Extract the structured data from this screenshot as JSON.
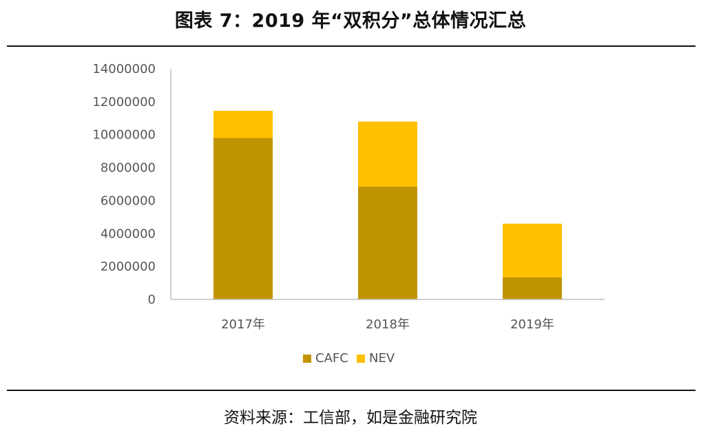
{
  "title": "图表 7：2019 年“双积分”总体情况汇总",
  "source": "资料来源：工信部，如是金融研究院",
  "colors": {
    "CAFC": "#C09400",
    "NEV": "#FFC000",
    "axis": "#BFBFBF",
    "tick_text": "#555555"
  },
  "chart_data": {
    "type": "bar",
    "stacked": true,
    "categories": [
      "2017年",
      "2018年",
      "2019年"
    ],
    "series": [
      {
        "name": "CAFC",
        "values": [
          9800000,
          6850000,
          1350000
        ]
      },
      {
        "name": "NEV",
        "values": [
          1650000,
          3950000,
          3250000
        ]
      }
    ],
    "ylim": [
      0,
      14000000
    ],
    "yticks": [
      0,
      2000000,
      4000000,
      6000000,
      8000000,
      10000000,
      12000000,
      14000000
    ],
    "ytick_labels": [
      "0",
      "2000000",
      "4000000",
      "6000000",
      "8000000",
      "10000000",
      "12000000",
      "14000000"
    ],
    "grid": false,
    "legend": "bottom"
  }
}
